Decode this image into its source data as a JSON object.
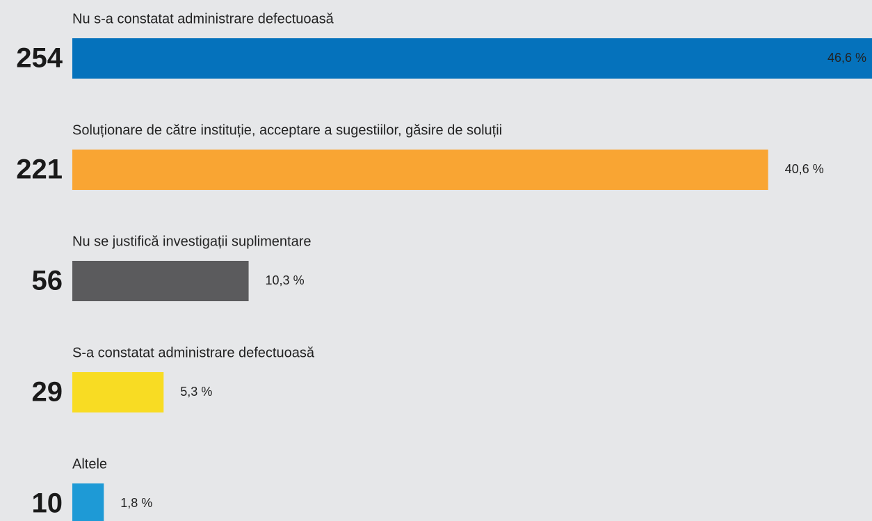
{
  "chart_data": {
    "type": "bar",
    "categories": [
      "Nu s-a constatat administrare defectuoasă",
      "Soluționare de către instituție, acceptare a sugestiilor, găsire de soluții",
      "Nu se justifică investigații suplimentare",
      "S-a constatat administrare defectuoasă",
      "Altele"
    ],
    "values": [
      254,
      221,
      56,
      29,
      10
    ],
    "percentages": [
      46.6,
      40.6,
      10.3,
      5.3,
      1.8
    ],
    "percentage_labels": [
      "46,6 %",
      "40,6 %",
      "10,3 %",
      "5,3 %",
      "1,8 %"
    ],
    "colors": [
      "#0572bc",
      "#f9a533",
      "#5b5b5d",
      "#f8dc23",
      "#1e9ad6"
    ]
  }
}
